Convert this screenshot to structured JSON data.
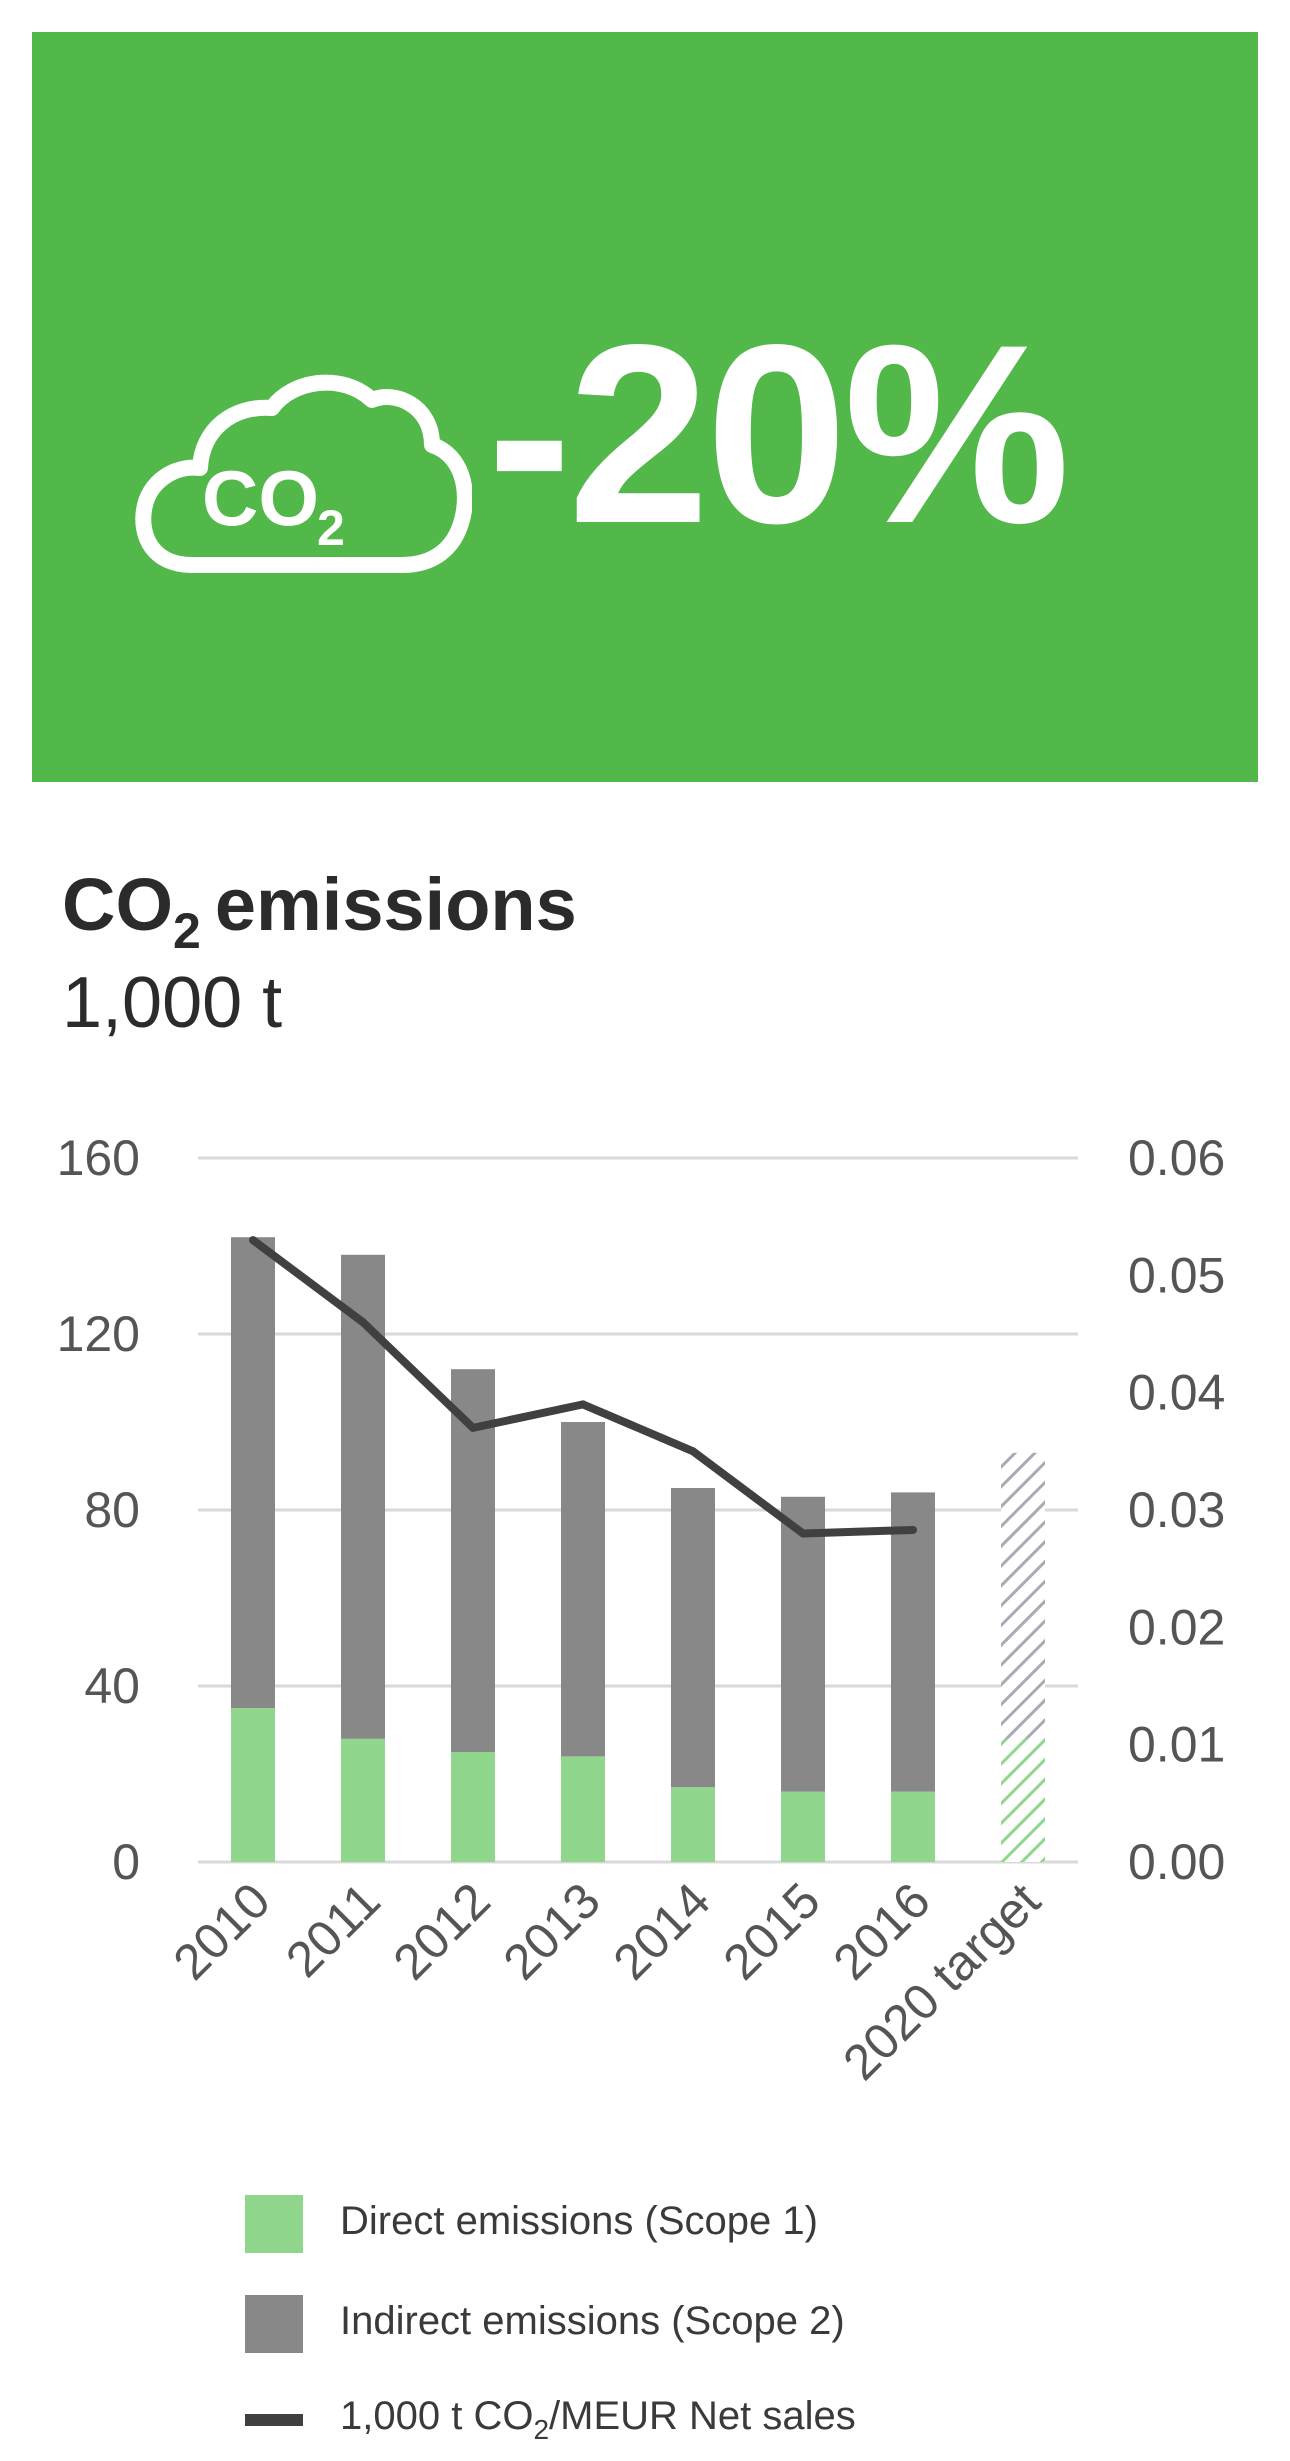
{
  "banner": {
    "background": "#51b849",
    "icon": "co2-cloud-icon",
    "icon_text": "CO2",
    "value": "-20%"
  },
  "title": {
    "main": "CO",
    "sub": "2",
    "rest": "emissions",
    "unit": "1,000 t"
  },
  "chart_data": {
    "type": "bar",
    "stacked": true,
    "categories": [
      "2010",
      "2011",
      "2012",
      "2013",
      "2014",
      "2015",
      "2016",
      "2020 target"
    ],
    "series": [
      {
        "name": "Direct emissions (Scope 1)",
        "color": "#90d68c",
        "values": [
          35,
          28,
          25,
          24,
          17,
          16,
          16,
          28
        ]
      },
      {
        "name": "Indirect emissions (Scope 2)",
        "color": "#888888",
        "values": [
          107,
          110,
          87,
          76,
          68,
          67,
          68,
          65
        ]
      },
      {
        "name": "1,000 t CO2/MEUR Net sales",
        "type": "line",
        "axis": "right",
        "color": "#404040",
        "values": [
          0.053,
          0.046,
          0.037,
          0.039,
          0.035,
          0.028,
          0.0283,
          null
        ]
      }
    ],
    "target_category": "2020 target",
    "target_style": "hatched",
    "ylim": [
      0,
      160
    ],
    "yticks": [
      "0",
      "40",
      "80",
      "120",
      "160"
    ],
    "y2lim": [
      0,
      0.06
    ],
    "y2ticks": [
      "0.00",
      "0.01",
      "0.02",
      "0.03",
      "0.04",
      "0.05",
      "0.06"
    ],
    "grid": true,
    "legend_position": "bottom"
  },
  "legend": [
    {
      "label": "Direct emissions (Scope 1)",
      "color": "#90d68c",
      "kind": "box"
    },
    {
      "label": "Indirect emissions (Scope 2)",
      "color": "#888888",
      "kind": "box"
    },
    {
      "label_a": "1,000 t CO",
      "label_sub": "2",
      "label_b": "/MEUR Net sales",
      "color": "#404040",
      "kind": "line"
    }
  ]
}
